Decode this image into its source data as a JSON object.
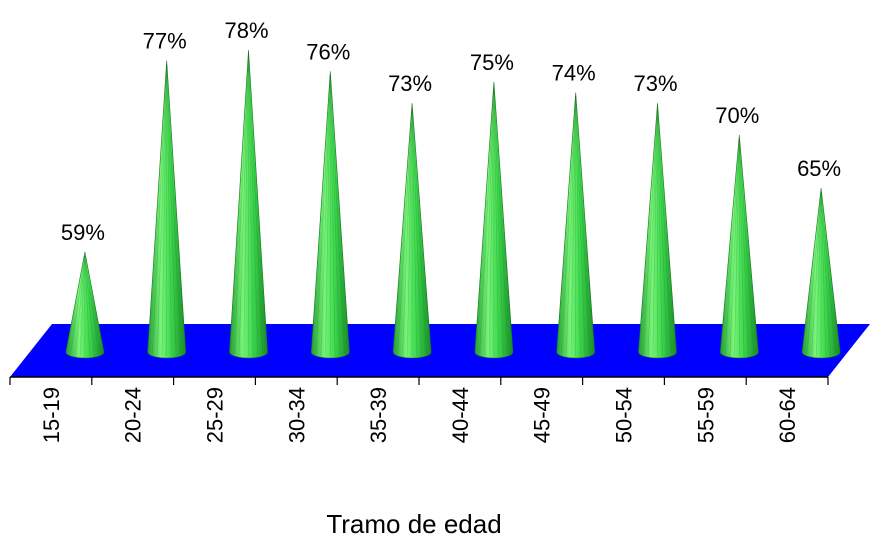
{
  "chart_data": {
    "type": "bar",
    "style": "3d-cone",
    "categories": [
      "15-19",
      "20-24",
      "25-29",
      "30-34",
      "35-39",
      "40-44",
      "45-49",
      "50-54",
      "55-59",
      "60-64"
    ],
    "values": [
      59,
      77,
      78,
      76,
      73,
      75,
      74,
      73,
      70,
      65
    ],
    "data_labels": [
      "59%",
      "77%",
      "78%",
      "76%",
      "73%",
      "75%",
      "74%",
      "73%",
      "70%",
      "65%"
    ],
    "title": "",
    "xlabel": "Tramo de edad",
    "ylabel": "",
    "ylim": [
      50,
      80
    ],
    "grid": false,
    "legend": "none",
    "colors": {
      "cone_light": "#66ee66",
      "cone_mid": "#2ecc40",
      "cone_dark": "#1a8a2a",
      "floor": "#0000ff",
      "axis": "#000000"
    }
  }
}
